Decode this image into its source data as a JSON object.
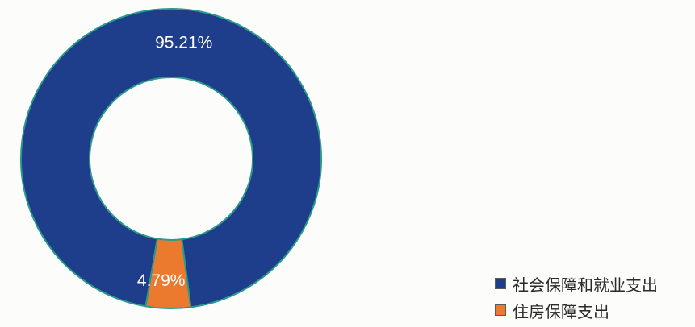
{
  "chart_data": {
    "type": "pie",
    "variant": "donut",
    "title": "",
    "categories": [
      "社会保障和就业支出",
      "住房保障支出"
    ],
    "values": [
      95.21,
      4.79
    ],
    "value_labels": [
      "95.21%",
      "4.79%"
    ],
    "colors": [
      "#1e3d8a",
      "#ec7a2e"
    ],
    "ring_stroke": "#2a9a8c",
    "legend_position": "bottom-right"
  },
  "legend": {
    "items": [
      {
        "label": "社会保障和就业支出",
        "color": "#1e3d8a"
      },
      {
        "label": "住房保障支出",
        "color": "#ec7a2e"
      }
    ]
  }
}
